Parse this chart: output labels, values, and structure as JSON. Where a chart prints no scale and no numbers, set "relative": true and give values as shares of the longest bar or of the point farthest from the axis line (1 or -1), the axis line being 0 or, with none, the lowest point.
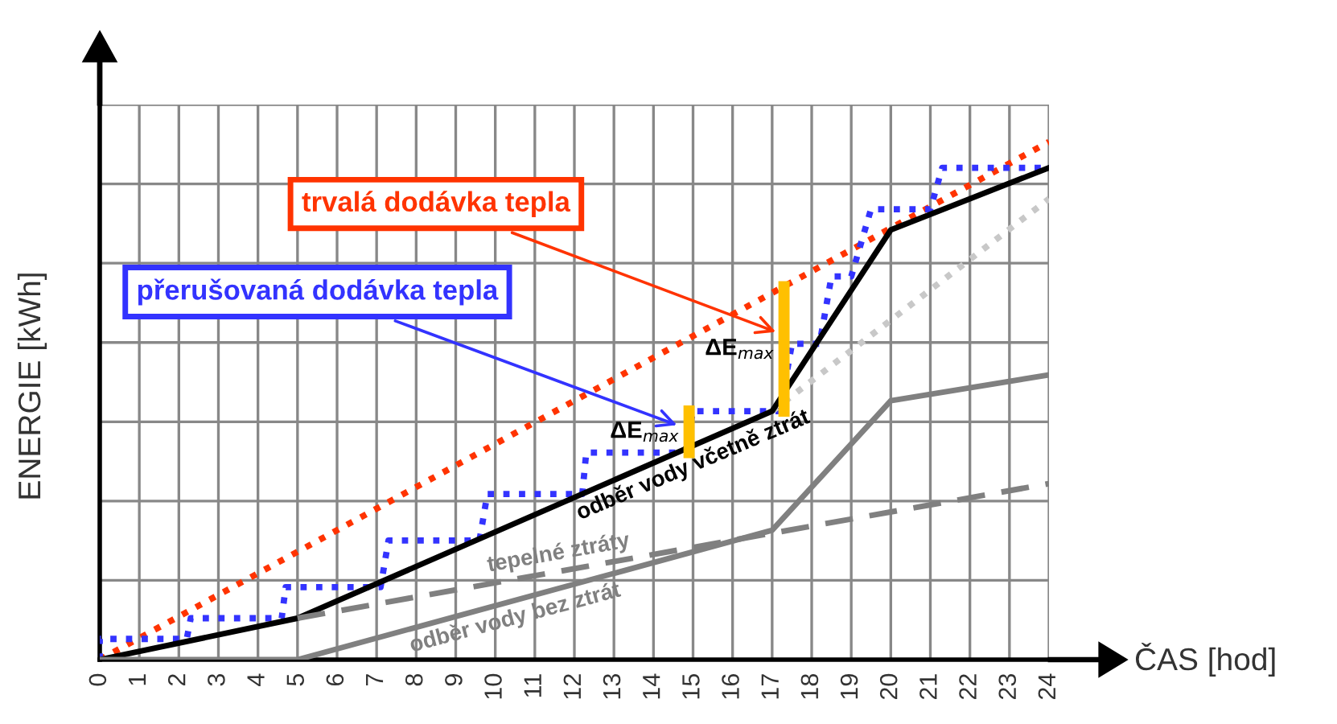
{
  "chart_data": {
    "type": "line",
    "relative": true,
    "xlabel": "ČAS [hod]",
    "ylabel": "ENERGIE [kWh]",
    "xlim": [
      0,
      24
    ],
    "xticks": [
      0,
      1,
      2,
      3,
      4,
      5,
      6,
      7,
      8,
      9,
      10,
      11,
      12,
      13,
      14,
      15,
      16,
      17,
      18,
      19,
      20,
      21,
      22,
      23,
      24
    ],
    "grid": true,
    "tick_labels": "x",
    "series": [
      {
        "name": "trvalá dodávka tepla",
        "color": "#ff3300",
        "line_style": "dotted",
        "x": [
          0,
          24
        ],
        "values": [
          0,
          1
        ]
      },
      {
        "name": "přerušovaná dodávka tepla",
        "color": "#3333ff",
        "line_style": "dotted",
        "x": [
          0,
          0,
          2.2,
          2.3,
          4.6,
          4.7,
          7.1,
          7.3,
          9.6,
          9.8,
          12.2,
          12.3,
          14.8,
          15,
          17.2,
          17.5,
          18.2,
          18.5,
          19.0,
          19.5,
          21.0,
          21.3,
          24
        ],
        "values": [
          0,
          0.04,
          0.04,
          0.08,
          0.08,
          0.14,
          0.14,
          0.23,
          0.23,
          0.32,
          0.32,
          0.4,
          0.4,
          0.48,
          0.48,
          0.61,
          0.61,
          0.74,
          0.74,
          0.87,
          0.87,
          0.95,
          0.95
        ]
      },
      {
        "color": "#c8c8c8",
        "line_style": "dotted",
        "x": [
          17,
          24
        ],
        "values": [
          0.48,
          0.89
        ]
      },
      {
        "name": "odběr vody včetně ztrát",
        "color": "#000000",
        "line_style": "solid",
        "x": [
          0,
          5,
          17,
          20,
          24
        ],
        "values": [
          0,
          0.08,
          0.48,
          0.83,
          0.95
        ]
      },
      {
        "name": "tepelné ztráty",
        "color": "#808080",
        "line_style": "dashed",
        "x": [
          5,
          24
        ],
        "values": [
          0.08,
          0.34
        ]
      },
      {
        "name": "odběr vody bez ztrát",
        "color": "#808080",
        "line_style": "solid",
        "x": [
          0,
          5,
          17,
          20,
          24
        ],
        "values": [
          0,
          0,
          0.25,
          0.5,
          0.55
        ]
      },
      {
        "color": "#ffc000",
        "line_style": "solid",
        "x": [
          14.9,
          14.9
        ],
        "values": [
          0.4,
          0.48
        ]
      },
      {
        "color": "#ffc000",
        "line_style": "solid",
        "x": [
          17.3,
          17.3
        ],
        "values": [
          0.48,
          0.72
        ]
      }
    ],
    "annotations": [
      {
        "text": "ΔE$_{max}$",
        "x": 14.9,
        "y": 0.44
      },
      {
        "text": "ΔE$_{max}$",
        "x": 17.3,
        "y": 0.6
      }
    ]
  }
}
